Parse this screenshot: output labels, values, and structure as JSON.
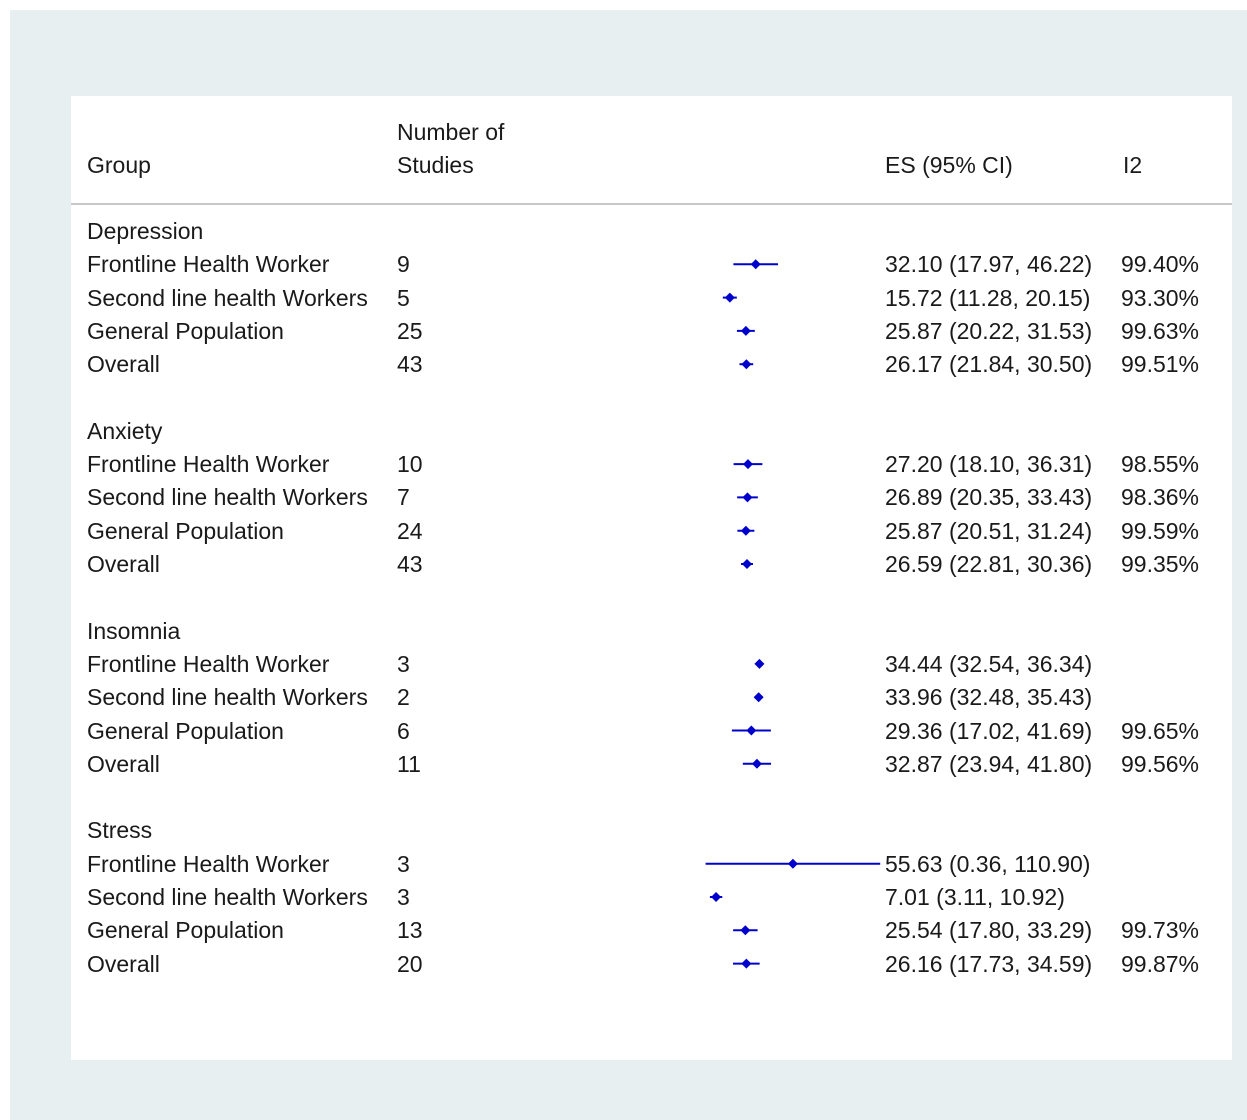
{
  "header": {
    "group_label": "Group",
    "studies_label_line1": "Number of",
    "studies_label_line2": "Studies",
    "es_label": "ES (95% CI)",
    "i2_label": "I2"
  },
  "colors": {
    "marker": "#0000cc",
    "text": "#1a1a1a",
    "frame_background": "#e8eff1",
    "rule": "#c8c8c8"
  },
  "chart_data": {
    "type": "forest",
    "title": "",
    "xlabel": "",
    "ylabel": "",
    "grid": false,
    "columns": [
      "Group",
      "Number of Studies",
      "ES (95% CI)",
      "I2"
    ],
    "sections": [
      {
        "name": "Depression",
        "rows": [
          {
            "label": "Frontline Health Worker",
            "n": "9",
            "es": 32.1,
            "lo": 17.97,
            "hi": 46.22,
            "ci_text": "32.10 (17.97, 46.22)",
            "i2": "99.40%"
          },
          {
            "label": "Second line health Workers",
            "n": "5",
            "es": 15.72,
            "lo": 11.28,
            "hi": 20.15,
            "ci_text": "15.72 (11.28, 20.15)",
            "i2": "93.30%"
          },
          {
            "label": "General Population",
            "n": "25",
            "es": 25.87,
            "lo": 20.22,
            "hi": 31.53,
            "ci_text": "25.87 (20.22, 31.53)",
            "i2": "99.63%"
          },
          {
            "label": "Overall",
            "n": "43",
            "es": 26.17,
            "lo": 21.84,
            "hi": 30.5,
            "ci_text": "26.17 (21.84, 30.50)",
            "i2": "99.51%"
          }
        ]
      },
      {
        "name": "Anxiety",
        "rows": [
          {
            "label": "Frontline Health Worker",
            "n": "10",
            "es": 27.2,
            "lo": 18.1,
            "hi": 36.31,
            "ci_text": "27.20 (18.10, 36.31)",
            "i2": "98.55%"
          },
          {
            "label": "Second line health Workers",
            "n": "7",
            "es": 26.89,
            "lo": 20.35,
            "hi": 33.43,
            "ci_text": "26.89 (20.35, 33.43)",
            "i2": "98.36%"
          },
          {
            "label": "General Population",
            "n": "24",
            "es": 25.87,
            "lo": 20.51,
            "hi": 31.24,
            "ci_text": "25.87 (20.51, 31.24)",
            "i2": "99.59%"
          },
          {
            "label": "Overall",
            "n": "43",
            "es": 26.59,
            "lo": 22.81,
            "hi": 30.36,
            "ci_text": "26.59 (22.81, 30.36)",
            "i2": "99.35%"
          }
        ]
      },
      {
        "name": "Insomnia",
        "rows": [
          {
            "label": "Frontline Health Worker",
            "n": "3",
            "es": 34.44,
            "lo": 32.54,
            "hi": 36.34,
            "ci_text": "34.44 (32.54, 36.34)",
            "i2": ""
          },
          {
            "label": "Second line health Workers",
            "n": "2",
            "es": 33.96,
            "lo": 32.48,
            "hi": 35.43,
            "ci_text": "33.96 (32.48, 35.43)",
            "i2": ""
          },
          {
            "label": "General Population",
            "n": "6",
            "es": 29.36,
            "lo": 17.02,
            "hi": 41.69,
            "ci_text": "29.36 (17.02, 41.69)",
            "i2": "99.65%"
          },
          {
            "label": "Overall",
            "n": "11",
            "es": 32.87,
            "lo": 23.94,
            "hi": 41.8,
            "ci_text": "32.87 (23.94, 41.80)",
            "i2": "99.56%"
          }
        ]
      },
      {
        "name": "Stress",
        "rows": [
          {
            "label": "Frontline Health Worker",
            "n": "3",
            "es": 55.63,
            "lo": 0.36,
            "hi": 110.9,
            "ci_text": "55.63 (0.36, 110.90)",
            "i2": ""
          },
          {
            "label": "Second line health Workers",
            "n": "3",
            "es": 7.01,
            "lo": 3.11,
            "hi": 10.92,
            "ci_text": "7.01 (3.11, 10.92)",
            "i2": ""
          },
          {
            "label": "General Population",
            "n": "13",
            "es": 25.54,
            "lo": 17.8,
            "hi": 33.29,
            "ci_text": "25.54 (17.80, 33.29)",
            "i2": "99.73%"
          },
          {
            "label": "Overall",
            "n": "20",
            "es": 26.16,
            "lo": 17.73,
            "hi": 34.59,
            "ci_text": "26.16 (17.73, 34.59)",
            "i2": "99.87%"
          }
        ]
      }
    ]
  }
}
